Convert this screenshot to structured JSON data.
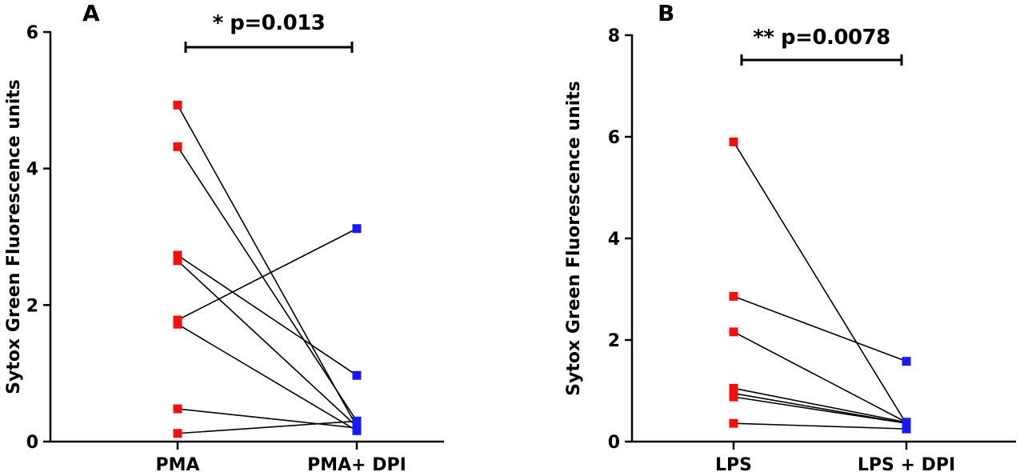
{
  "chart_data": [
    {
      "type": "scatter",
      "panel_label": "A",
      "ylabel": "Sytox Green Fluorescence units",
      "categories": [
        "PMA",
        "PMA+ DPI"
      ],
      "ylim": [
        0,
        6
      ],
      "yticks": [
        "0",
        "2",
        "4",
        "6"
      ],
      "paired": true,
      "series": [
        {
          "color": "#ee1111",
          "values": [
            4.93,
            4.32,
            2.73,
            2.65,
            1.78,
            1.72,
            0.48,
            0.12
          ]
        },
        {
          "color": "#1a1aee",
          "values": [
            0.22,
            0.3,
            0.97,
            0.22,
            3.12,
            0.16,
            0.2,
            0.3
          ]
        }
      ],
      "significance": {
        "text": "* p=0.013",
        "from": 0,
        "to": 1
      }
    },
    {
      "type": "scatter",
      "panel_label": "B",
      "ylabel": "Sytox Green Fluorescence units",
      "categories": [
        "LPS",
        "LPS + DPI"
      ],
      "ylim": [
        0,
        8
      ],
      "yticks": [
        "0",
        "2",
        "4",
        "6",
        "8"
      ],
      "paired": true,
      "series": [
        {
          "color": "#ee1111",
          "values": [
            5.9,
            2.86,
            2.16,
            1.05,
            0.95,
            0.88,
            0.36
          ]
        },
        {
          "color": "#1a1aee",
          "values": [
            0.35,
            1.58,
            0.38,
            0.38,
            0.36,
            0.36,
            0.25
          ]
        }
      ],
      "significance": {
        "text": "** p=0.0078",
        "from": 0,
        "to": 1
      }
    }
  ]
}
